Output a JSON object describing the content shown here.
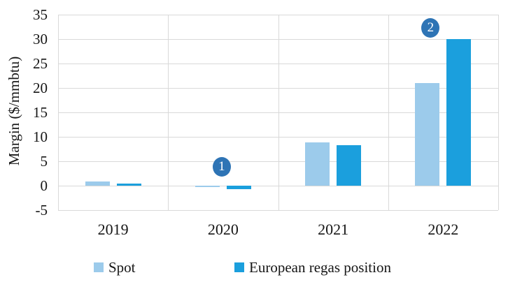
{
  "chart_data": {
    "type": "bar",
    "title": "",
    "xlabel": "",
    "ylabel": "Margin ($/mmbtu)",
    "categories": [
      "2019",
      "2020",
      "2021",
      "2022"
    ],
    "series": [
      {
        "name": "Spot",
        "color": "#9CCBEB",
        "values": [
          0.9,
          -0.3,
          8.8,
          21
        ]
      },
      {
        "name": "European regas position",
        "color": "#1B9FDD",
        "values": [
          0.5,
          -0.7,
          8.3,
          30
        ]
      }
    ],
    "ylim": [
      -5,
      35
    ],
    "yticks": [
      35,
      30,
      25,
      20,
      15,
      10,
      5,
      0,
      -5
    ],
    "grid": true,
    "grid_color": "#D9D9D9",
    "legend_position": "bottom",
    "annotations": [
      {
        "label": "1",
        "category_index": 1,
        "value": 3.8,
        "dx": -2
      },
      {
        "label": "2",
        "category_index": 3,
        "value": 32.3,
        "dx": -18
      }
    ],
    "annotation_color": "#2E74B5"
  }
}
